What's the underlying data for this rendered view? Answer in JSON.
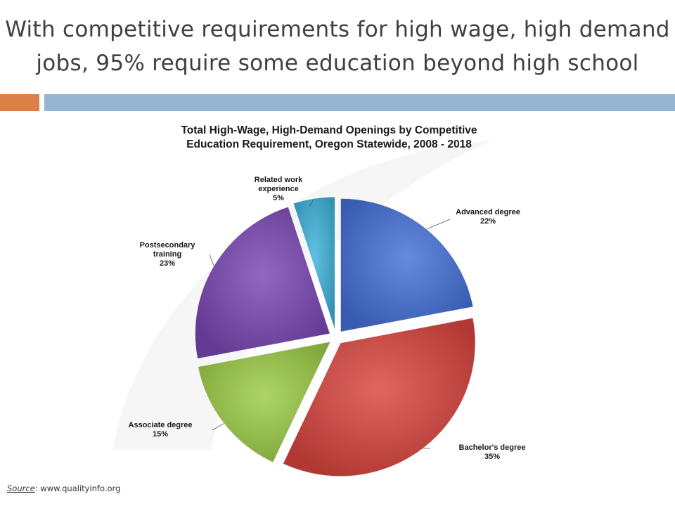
{
  "slide": {
    "title_line1": "With competitive requirements for high wage, high demand",
    "title_line2": "jobs, 95% require some education beyond high school",
    "accent_colors": {
      "orange": "#dd8047",
      "blue": "#94b6d2"
    }
  },
  "source": {
    "label": "Source",
    "separator": ": ",
    "url": "www.qualityinfo.org"
  },
  "chart_data": {
    "type": "pie",
    "title_lines": [
      "Total High-Wage, High-Demand Openings by Competitive",
      "Education Requirement, Oregon Statewide, 2008 - 2018"
    ],
    "start_angle_deg": 0,
    "direction": "clockwise",
    "exploded": true,
    "slices": [
      {
        "name": "Advanced degree",
        "value": 22,
        "value_label": "22%",
        "color": "#4470d6",
        "label_lines": [
          "Advanced degree",
          "22%"
        ]
      },
      {
        "name": "Bachelor's degree",
        "value": 35,
        "value_label": "35%",
        "color": "#d9443e",
        "label_lines": [
          "Bachelor's degree",
          "35%"
        ]
      },
      {
        "name": "Associate degree",
        "value": 15,
        "value_label": "15%",
        "color": "#9ccb46",
        "label_lines": [
          "Associate degree",
          "15%"
        ]
      },
      {
        "name": "Postsecondary training",
        "value": 23,
        "value_label": "23%",
        "color": "#7a46b3",
        "label_lines": [
          "Postsecondary",
          "training",
          "23%"
        ]
      },
      {
        "name": "Related work experience",
        "value": 5,
        "value_label": "5%",
        "color": "#3fb2dc",
        "label_lines": [
          "Related work",
          "experience",
          "5%"
        ]
      }
    ]
  }
}
